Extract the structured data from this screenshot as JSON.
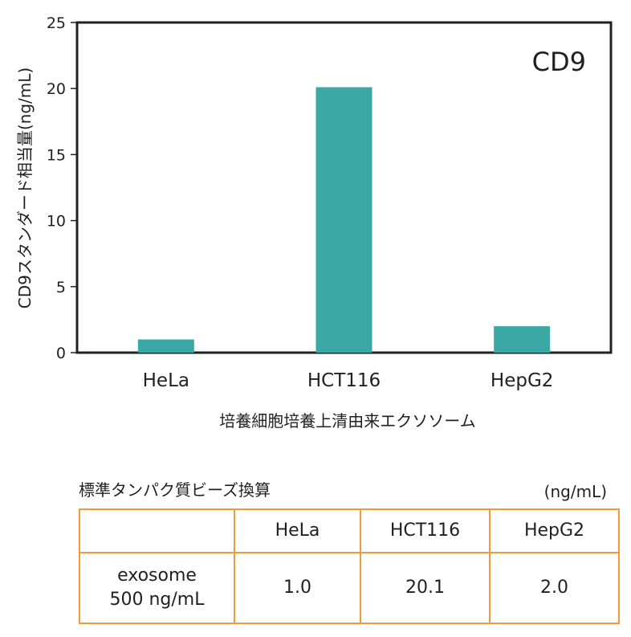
{
  "chart_data": {
    "type": "bar",
    "title": "CD9",
    "categories": [
      "HeLa",
      "HCT116",
      "HepG2"
    ],
    "values": [
      1.0,
      20.1,
      2.0
    ],
    "ylabel": "CD9スタンダード相当量(ng/mL)",
    "xlabel": "培養細胞培養上清由来エクソソーム",
    "ylim": [
      0,
      25
    ],
    "yticks": [
      0,
      5,
      10,
      15,
      20,
      25
    ],
    "bar_color": "#3aa9a5",
    "grid": false
  },
  "table": {
    "caption": "標準タンパク質ビーズ換算",
    "unit": "(ng/mL)",
    "headers": [
      "",
      "HeLa",
      "HCT116",
      "HepG2"
    ],
    "row_label_line1": "exosome",
    "row_label_line2": "500 ng/mL",
    "values": [
      "1.0",
      "20.1",
      "2.0"
    ],
    "border_color": "#f29a3b"
  }
}
